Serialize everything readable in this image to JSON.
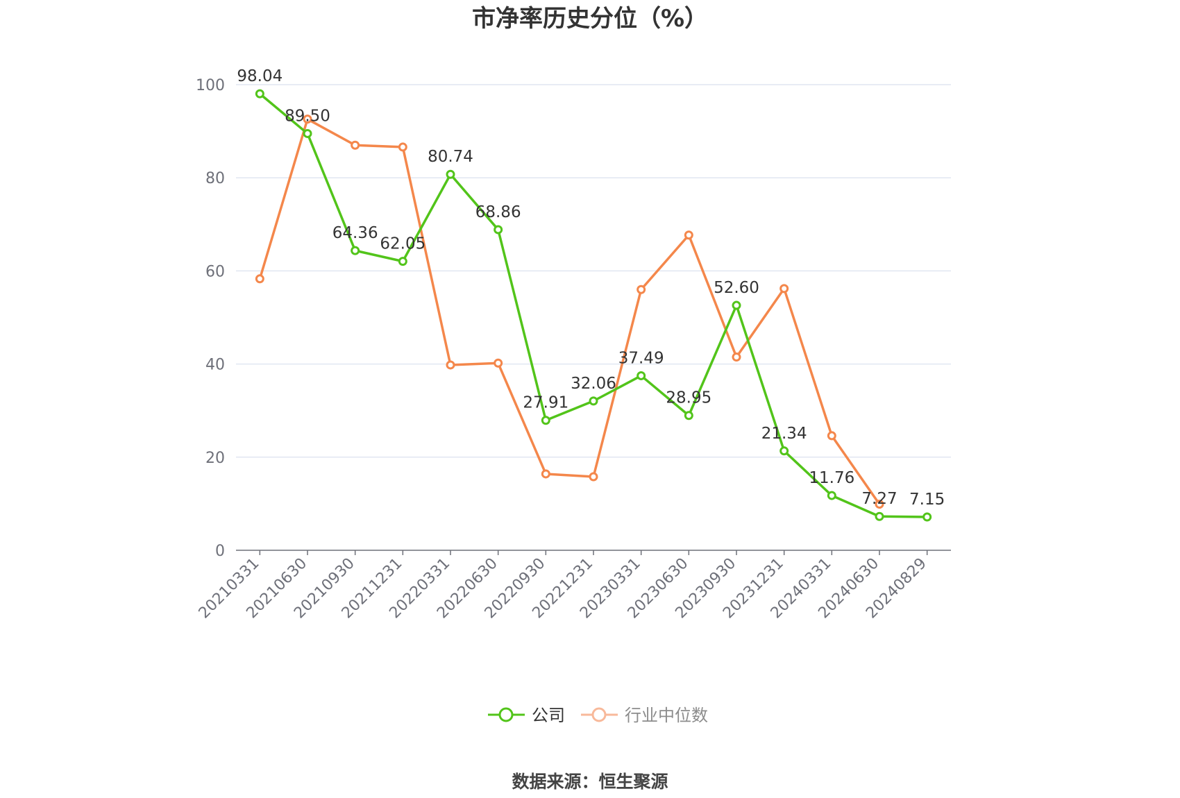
{
  "chart_data": {
    "type": "line",
    "title": "市净率历史分位（%）",
    "categories": [
      "20210331",
      "20210630",
      "20210930",
      "20211231",
      "20220331",
      "20220630",
      "20220930",
      "20221231",
      "20230331",
      "20230630",
      "20230930",
      "20231231",
      "20240331",
      "20240630",
      "20240829"
    ],
    "ylim": [
      0,
      100
    ],
    "yticks": [
      0,
      20,
      40,
      60,
      80,
      100
    ],
    "grid": true,
    "legend_position": "bottom-center",
    "series": [
      {
        "name": "公司",
        "color": "#52c41a",
        "values": [
          98.04,
          89.5,
          64.36,
          62.05,
          80.74,
          68.86,
          27.91,
          32.06,
          37.49,
          28.95,
          52.6,
          21.34,
          11.76,
          7.27,
          7.15
        ],
        "labels": [
          "98.04",
          "89.50",
          "64.36",
          "62.05",
          "80.74",
          "68.86",
          "27.91",
          "32.06",
          "37.49",
          "28.95",
          "52.60",
          "21.34",
          "11.76",
          "7.27",
          "7.15"
        ]
      },
      {
        "name": "行业中位数",
        "color": "#f4874b",
        "values": [
          58.3,
          92.6,
          87.0,
          86.6,
          39.8,
          40.2,
          16.4,
          15.8,
          56.0,
          67.7,
          41.5,
          56.2,
          24.6,
          9.9,
          null
        ]
      }
    ]
  },
  "legend": {
    "company": "公司",
    "industry": "行业中位数"
  },
  "source": "数据来源：恒生聚源"
}
